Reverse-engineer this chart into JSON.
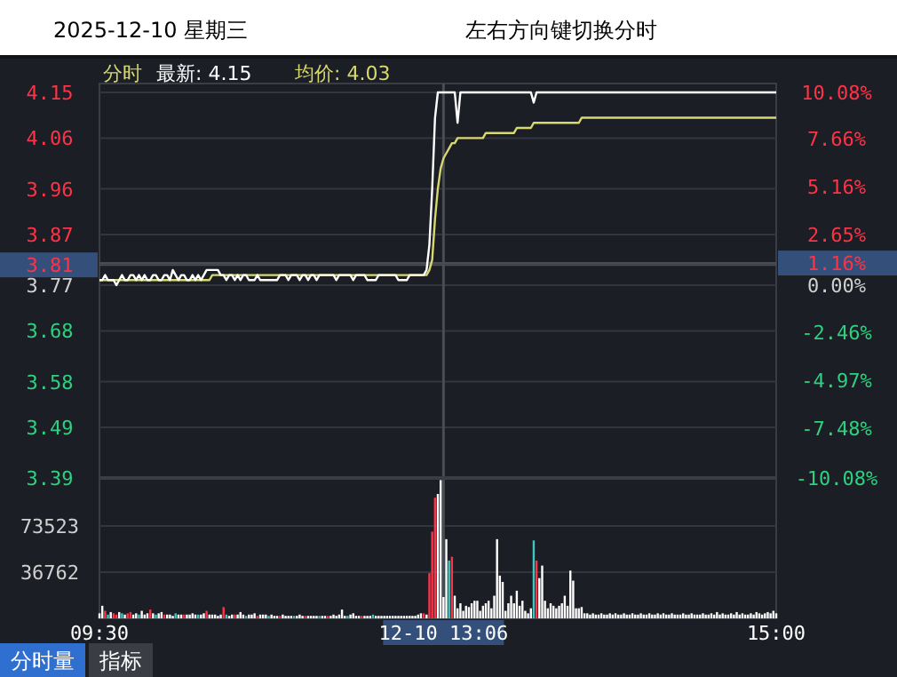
{
  "chart_data": [
    {
      "type": "line",
      "title": "2025-12-10 星期三",
      "subtitle": "左右方向键切换分时",
      "legend_title": "分时",
      "legend": "top left",
      "grid": "y",
      "tick_labels": "y",
      "categories": [
        "09:30",
        null,
        null,
        null,
        null,
        null,
        null,
        null,
        null,
        null,
        null,
        null,
        null,
        null,
        null,
        null,
        null,
        null,
        null,
        null,
        null,
        null,
        null,
        null,
        null,
        null,
        null,
        null,
        null,
        null,
        null,
        null,
        null,
        null,
        null,
        null,
        null,
        null,
        null,
        null,
        null,
        null,
        null,
        null,
        null,
        null,
        null,
        null,
        null,
        null,
        null,
        null,
        null,
        null,
        null,
        null,
        null,
        null,
        null,
        null,
        null,
        null,
        null,
        null,
        null,
        null,
        null,
        null,
        null,
        null,
        null,
        null,
        null,
        null,
        null,
        null,
        null,
        null,
        null,
        null,
        null,
        null,
        null,
        null,
        null,
        null,
        null,
        null,
        null,
        null,
        null,
        null,
        null,
        null,
        null,
        null,
        null,
        null,
        null,
        null,
        null,
        null,
        null,
        null,
        null,
        null,
        null,
        null,
        null,
        null,
        null,
        null,
        null,
        null,
        null,
        null,
        null,
        null,
        null,
        null,
        null,
        null,
        "12-10 13:06",
        null,
        null,
        null,
        null,
        null,
        null,
        null,
        null,
        null,
        null,
        null,
        null,
        null,
        null,
        null,
        null,
        null,
        null,
        null,
        null,
        null,
        null,
        null,
        null,
        null,
        null,
        null,
        null,
        null,
        null,
        null,
        null,
        null,
        null,
        null,
        null,
        null,
        null,
        null,
        null,
        null,
        null,
        null,
        null,
        null,
        null,
        null,
        null,
        null,
        null,
        null,
        null,
        null,
        null,
        null,
        null,
        null,
        null,
        null,
        null,
        null,
        null,
        null,
        null,
        null,
        null,
        null,
        null,
        null,
        null,
        null,
        null,
        null,
        null,
        null,
        null,
        null,
        null,
        null,
        null,
        null,
        null,
        null,
        null,
        null,
        null,
        null,
        null,
        null,
        null,
        null,
        null,
        null,
        null,
        null,
        null,
        null,
        null,
        null,
        null,
        null,
        null,
        null,
        null,
        null,
        null,
        null,
        null,
        null,
        null,
        null,
        null,
        null,
        null,
        null,
        null,
        null,
        "15:00"
      ],
      "ylim": [
        3.39,
        4.15
      ],
      "y2lim": [
        -10.08,
        10.08
      ],
      "yticks": [
        3.39,
        3.49,
        3.58,
        3.68,
        3.77,
        3.87,
        3.96,
        4.06,
        4.15
      ],
      "y2ticks": [
        {
          "value": -10.08,
          "label": "-10.08%"
        },
        {
          "value": -7.48,
          "label": "-7.48%"
        },
        {
          "value": -4.97,
          "label": "-4.97%"
        },
        {
          "value": -2.46,
          "label": "-2.46%"
        },
        {
          "value": 0,
          "label": "0.00%"
        },
        {
          "value": 2.65,
          "label": "2.65%"
        },
        {
          "value": 5.16,
          "label": "5.16%"
        },
        {
          "value": 7.66,
          "label": "7.66%"
        },
        {
          "value": 10.08,
          "label": "10.08%"
        }
      ],
      "ref_lines": [
        {
          "axis": "y",
          "value": 3.81,
          "label": "3.81"
        },
        {
          "axis": "y2",
          "value": 1.16,
          "label": "1.16%"
        },
        {
          "axis": "x",
          "value": "12-10 13:06"
        }
      ],
      "series": [
        {
          "name": "均价: 4.03",
          "color": "#d8d870",
          "values": [
            3.78,
            3.78,
            3.78,
            3.78,
            3.78,
            3.78,
            3.78,
            3.78,
            3.78,
            3.78,
            3.78,
            3.78,
            3.78,
            3.78,
            3.78,
            3.78,
            3.78,
            3.78,
            3.78,
            3.78,
            3.78,
            3.78,
            3.78,
            3.78,
            3.78,
            3.78,
            3.78,
            3.78,
            3.78,
            3.78,
            3.78,
            3.78,
            3.78,
            3.78,
            3.78,
            3.78,
            3.78,
            3.78,
            3.78,
            3.78,
            3.79,
            3.79,
            3.79,
            3.79,
            3.79,
            3.79,
            3.79,
            3.79,
            3.79,
            3.79,
            3.79,
            3.79,
            3.79,
            3.79,
            3.79,
            3.79,
            3.79,
            3.79,
            3.79,
            3.79,
            3.79,
            3.79,
            3.79,
            3.79,
            3.79,
            3.79,
            3.79,
            3.79,
            3.79,
            3.79,
            3.79,
            3.79,
            3.79,
            3.79,
            3.79,
            3.79,
            3.79,
            3.79,
            3.79,
            3.79,
            3.79,
            3.79,
            3.79,
            3.79,
            3.79,
            3.79,
            3.79,
            3.79,
            3.79,
            3.79,
            3.79,
            3.79,
            3.79,
            3.79,
            3.79,
            3.79,
            3.79,
            3.79,
            3.79,
            3.79,
            3.79,
            3.79,
            3.79,
            3.79,
            3.79,
            3.79,
            3.79,
            3.79,
            3.79,
            3.79,
            3.79,
            3.79,
            3.79,
            3.79,
            3.79,
            3.79,
            3.79,
            3.8,
            3.82,
            3.9,
            3.96,
            4.0,
            4.02,
            4.03,
            4.04,
            4.05,
            4.05,
            4.06,
            4.06,
            4.06,
            4.06,
            4.06,
            4.06,
            4.06,
            4.06,
            4.06,
            4.06,
            4.07,
            4.07,
            4.07,
            4.07,
            4.07,
            4.07,
            4.07,
            4.07,
            4.07,
            4.07,
            4.07,
            4.08,
            4.08,
            4.08,
            4.08,
            4.08,
            4.08,
            4.09,
            4.09,
            4.09,
            4.09,
            4.09,
            4.09,
            4.09,
            4.09,
            4.09,
            4.09,
            4.09,
            4.09,
            4.09,
            4.09,
            4.09,
            4.09,
            4.09,
            4.1,
            4.1,
            4.1,
            4.1,
            4.1,
            4.1,
            4.1,
            4.1,
            4.1,
            4.1,
            4.1,
            4.1,
            4.1,
            4.1,
            4.1,
            4.1,
            4.1,
            4.1,
            4.1,
            4.1,
            4.1,
            4.1,
            4.1,
            4.1,
            4.1,
            4.1,
            4.1,
            4.1,
            4.1,
            4.1,
            4.1,
            4.1,
            4.1,
            4.1,
            4.1,
            4.1,
            4.1,
            4.1,
            4.1,
            4.1,
            4.1,
            4.1,
            4.1,
            4.1,
            4.1,
            4.1,
            4.1,
            4.1,
            4.1,
            4.1,
            4.1,
            4.1,
            4.1,
            4.1,
            4.1,
            4.1,
            4.1,
            4.1,
            4.1,
            4.1,
            4.1,
            4.1,
            4.1,
            4.1,
            4.1,
            4.1,
            4.1,
            4.1,
            4.1,
            4.1
          ]
        },
        {
          "name": "最新: 4.15",
          "color": "#ffffff",
          "values": [
            3.78,
            3.78,
            3.79,
            3.78,
            3.78,
            3.78,
            3.77,
            3.78,
            3.79,
            3.78,
            3.78,
            3.79,
            3.79,
            3.78,
            3.79,
            3.78,
            3.79,
            3.78,
            3.78,
            3.79,
            3.79,
            3.78,
            3.78,
            3.79,
            3.79,
            3.78,
            3.8,
            3.79,
            3.78,
            3.79,
            3.79,
            3.78,
            3.78,
            3.79,
            3.78,
            3.79,
            3.78,
            3.79,
            3.8,
            3.8,
            3.8,
            3.8,
            3.8,
            3.79,
            3.79,
            3.78,
            3.79,
            3.79,
            3.78,
            3.79,
            3.78,
            3.79,
            3.79,
            3.78,
            3.78,
            3.78,
            3.79,
            3.78,
            3.78,
            3.78,
            3.78,
            3.78,
            3.78,
            3.78,
            3.79,
            3.79,
            3.79,
            3.78,
            3.79,
            3.79,
            3.79,
            3.78,
            3.79,
            3.79,
            3.78,
            3.79,
            3.79,
            3.78,
            3.79,
            3.79,
            3.79,
            3.79,
            3.79,
            3.79,
            3.78,
            3.79,
            3.79,
            3.79,
            3.79,
            3.79,
            3.78,
            3.79,
            3.79,
            3.79,
            3.79,
            3.78,
            3.78,
            3.78,
            3.78,
            3.79,
            3.79,
            3.79,
            3.79,
            3.79,
            3.79,
            3.79,
            3.78,
            3.78,
            3.78,
            3.78,
            3.79,
            3.79,
            3.79,
            3.79,
            3.79,
            3.79,
            3.8,
            3.85,
            3.96,
            4.1,
            4.15,
            4.15,
            4.15,
            4.15,
            4.15,
            4.15,
            4.15,
            4.09,
            4.15,
            4.15,
            4.15,
            4.15,
            4.15,
            4.15,
            4.15,
            4.15,
            4.15,
            4.15,
            4.15,
            4.15,
            4.15,
            4.15,
            4.15,
            4.15,
            4.15,
            4.15,
            4.15,
            4.15,
            4.15,
            4.15,
            4.15,
            4.15,
            4.15,
            4.15,
            4.13,
            4.15,
            4.15,
            4.15,
            4.15,
            4.15,
            4.15,
            4.15,
            4.15,
            4.15,
            4.15,
            4.15,
            4.15,
            4.15,
            4.15,
            4.15,
            4.15,
            4.15,
            4.15,
            4.15,
            4.15,
            4.15,
            4.15,
            4.15,
            4.15,
            4.15,
            4.15,
            4.15,
            4.15,
            4.15,
            4.15,
            4.15,
            4.15,
            4.15,
            4.15,
            4.15,
            4.15,
            4.15,
            4.15,
            4.15,
            4.15,
            4.15,
            4.15,
            4.15,
            4.15,
            4.15,
            4.15,
            4.15,
            4.15,
            4.15,
            4.15,
            4.15,
            4.15,
            4.15,
            4.15,
            4.15,
            4.15,
            4.15,
            4.15,
            4.15,
            4.15,
            4.15,
            4.15,
            4.15,
            4.15,
            4.15,
            4.15,
            4.15,
            4.15,
            4.15,
            4.15,
            4.15,
            4.15,
            4.15,
            4.15,
            4.15,
            4.15,
            4.15,
            4.15,
            4.15,
            4.15,
            4.15,
            4.15,
            4.15,
            4.15,
            4.15,
            4.15
          ]
        }
      ]
    },
    {
      "type": "bar",
      "grid": "y",
      "ylim": [
        0,
        110285
      ],
      "yticks": [
        36762,
        73523
      ],
      "categories": [
        "09:30",
        null,
        null,
        null,
        null,
        null,
        null,
        null,
        null,
        null,
        null,
        null,
        null,
        null,
        null,
        null,
        null,
        null,
        null,
        null,
        null,
        null,
        null,
        null,
        null,
        null,
        null,
        null,
        null,
        null,
        null,
        null,
        null,
        null,
        null,
        null,
        null,
        null,
        null,
        null,
        null,
        null,
        null,
        null,
        null,
        null,
        null,
        null,
        null,
        null,
        null,
        null,
        null,
        null,
        null,
        null,
        null,
        null,
        null,
        null,
        null,
        null,
        null,
        null,
        null,
        null,
        null,
        null,
        null,
        null,
        null,
        null,
        null,
        null,
        null,
        null,
        null,
        null,
        null,
        null,
        null,
        null,
        null,
        null,
        null,
        null,
        null,
        null,
        null,
        null,
        null,
        null,
        null,
        null,
        null,
        null,
        null,
        null,
        null,
        null,
        null,
        null,
        null,
        null,
        null,
        null,
        null,
        null,
        null,
        null,
        null,
        null,
        null,
        null,
        null,
        null,
        null,
        null,
        null,
        null,
        null,
        null,
        "12-10 13:06",
        null,
        null,
        null,
        null,
        null,
        null,
        null,
        null,
        null,
        null,
        null,
        null,
        null,
        null,
        null,
        null,
        null,
        null,
        null,
        null,
        null,
        null,
        null,
        null,
        null,
        null,
        null,
        null,
        null,
        null,
        null,
        null,
        null,
        null,
        null,
        null,
        null,
        null,
        null,
        null,
        null,
        null,
        null,
        null,
        null,
        null,
        null,
        null,
        null,
        null,
        null,
        null,
        null,
        null,
        null,
        null,
        null,
        null,
        null,
        null,
        null,
        null,
        null,
        null,
        null,
        null,
        null,
        null,
        null,
        null,
        null,
        null,
        null,
        null,
        null,
        null,
        null,
        null,
        null,
        null,
        null,
        null,
        null,
        null,
        null,
        null,
        null,
        null,
        null,
        null,
        null,
        null,
        null,
        null,
        null,
        null,
        null,
        null,
        null,
        null,
        null,
        null,
        null,
        null,
        null,
        null,
        null,
        null,
        null,
        null,
        null,
        null,
        null,
        null,
        null,
        null,
        null,
        "15:00"
      ],
      "ref_lines": [
        {
          "axis": "x",
          "value": "12-10 13:06"
        }
      ],
      "annotations": [
        "分时量",
        "指标"
      ],
      "values": [
        4000,
        10000,
        6000,
        3000,
        5000,
        4000,
        3000,
        5000,
        4000,
        3000,
        4000,
        5000,
        3000,
        4000,
        3000,
        6000,
        3000,
        4000,
        7000,
        4000,
        3000,
        4000,
        5000,
        3000,
        3000,
        3000,
        2000,
        4000,
        3000,
        3000,
        3000,
        3000,
        3000,
        4000,
        3000,
        3000,
        3000,
        4000,
        6000,
        3000,
        3000,
        3000,
        2000,
        3000,
        9000,
        3000,
        2000,
        3000,
        3000,
        3000,
        5000,
        3000,
        2000,
        3000,
        3000,
        4000,
        2000,
        3000,
        3000,
        3000,
        2000,
        3000,
        2000,
        2000,
        2000,
        3000,
        2000,
        2000,
        2000,
        2000,
        2000,
        3000,
        2000,
        2000,
        2000,
        2000,
        2000,
        2000,
        2000,
        2000,
        2000,
        2000,
        2000,
        3000,
        2000,
        3000,
        7000,
        2000,
        2000,
        3000,
        4000,
        2000,
        2000,
        2000,
        2000,
        2000,
        2000,
        3000,
        2000,
        2000,
        2000,
        2000,
        2000,
        2000,
        2000,
        2000,
        2000,
        2000,
        2000,
        2000,
        2000,
        2000,
        2000,
        3000,
        4000,
        4000,
        3000,
        36000,
        69000,
        96000,
        99000,
        110000,
        17000,
        63000,
        46000,
        49000,
        18000,
        8000,
        12000,
        6000,
        10000,
        9000,
        12000,
        14000,
        14000,
        6000,
        10000,
        12000,
        14000,
        8000,
        18000,
        63000,
        34000,
        29000,
        6000,
        12000,
        18000,
        12000,
        22000,
        10000,
        14000,
        6000,
        4000,
        8000,
        62000,
        46000,
        32000,
        42000,
        14000,
        8000,
        12000,
        10000,
        8000,
        10000,
        12000,
        18000,
        10000,
        38000,
        30000,
        8000,
        8000,
        9000,
        4000,
        4000,
        3000,
        4000,
        3000,
        3000,
        4000,
        3000,
        3000,
        4000,
        3000,
        4000,
        3000,
        3000,
        4000,
        3000,
        3000,
        4000,
        3000,
        3000,
        4000,
        3000,
        3000,
        4000,
        3000,
        3000,
        4000,
        3000,
        4000,
        3000,
        3000,
        4000,
        3000,
        3000,
        3000,
        4000,
        3000,
        3000,
        4000,
        3000,
        3000,
        3000,
        4000,
        3000,
        3000,
        4000,
        3000,
        5000,
        3000,
        4000,
        3000,
        3000,
        4000,
        3000,
        5000,
        3000,
        4000,
        3000,
        3000,
        4000,
        3000,
        5000,
        4000,
        3000,
        4000,
        5000,
        4000,
        6000,
        4000
      ],
      "colors": [
        "#ffffff",
        "#ffffff",
        "#ff3348",
        "#3cc8c0",
        "#ffffff",
        "#ff3348",
        "#ff3348",
        "#ffffff",
        "#3cc8c0",
        "#ffffff",
        "#ff3348",
        "#ff3348",
        "#ffffff",
        "#ffffff",
        "#3cc8c0",
        "#ffffff",
        "#ffffff",
        "#ffffff",
        "#ff3348",
        "#ffffff",
        "#3cc8c0",
        "#ffffff",
        "#ffffff",
        "#ff3348",
        "#ffffff",
        "#ffffff",
        "#ffffff",
        "#3cc8c0",
        "#ffffff",
        "#ffffff",
        "#ff3348",
        "#ffffff",
        "#ffffff",
        "#ffffff",
        "#ffffff",
        "#3cc8c0",
        "#ffffff",
        "#ffffff",
        "#ff3348",
        "#ffffff",
        "#ffffff",
        "#ffffff",
        "#ffffff",
        "#ffffff",
        "#ff3348",
        "#3cc8c0",
        "#ffffff",
        "#ffffff",
        "#ff3348",
        "#ffffff",
        "#ffffff",
        "#ffffff",
        "#3cc8c0",
        "#ffffff",
        "#ffffff",
        "#ffffff",
        "#ff3348",
        "#ffffff",
        "#ffffff",
        "#ffffff",
        "#3cc8c0",
        "#ffffff",
        "#ffffff",
        "#ffffff",
        "#ff3348",
        "#ffffff",
        "#ffffff",
        "#ffffff",
        "#ffffff",
        "#3cc8c0",
        "#ffffff",
        "#ffffff",
        "#ffffff",
        "#ff3348",
        "#ffffff",
        "#ffffff",
        "#ffffff",
        "#ffffff",
        "#3cc8c0",
        "#ffffff",
        "#ffffff",
        "#ff3348",
        "#ffffff",
        "#ffffff",
        "#ffffff",
        "#ffffff",
        "#ffffff",
        "#ffffff",
        "#3cc8c0",
        "#ffffff",
        "#ffffff",
        "#ffffff",
        "#ffffff",
        "#ff3348",
        "#ffffff",
        "#ffffff",
        "#ffffff",
        "#3cc8c0",
        "#ffffff",
        "#ffffff",
        "#ffffff",
        "#ffffff",
        "#ffffff",
        "#ffffff",
        "#ffffff",
        "#ffffff",
        "#ffffff",
        "#ffffff",
        "#ffffff",
        "#ffffff",
        "#ffffff",
        "#ffffff",
        "#ffffff",
        "#ffffff",
        "#ffffff",
        "#ff3348",
        "#ffffff",
        "#ff3348",
        "#ff3348",
        "#ff3348",
        "#ffffff",
        "#ffffff",
        "#ffffff",
        "#ffffff",
        "#3cc8c0",
        "#ff3348",
        "#ffffff",
        "#ffffff",
        "#ffffff",
        "#ffffff",
        "#ffffff",
        "#ffffff",
        "#ffffff",
        "#ffffff",
        "#ffffff",
        "#ffffff",
        "#ffffff",
        "#ffffff",
        "#ffffff",
        "#ffffff",
        "#ffffff",
        "#ffffff",
        "#ffffff",
        "#ffffff",
        "#ffffff",
        "#ffffff",
        "#ffffff",
        "#ffffff",
        "#ffffff",
        "#ffffff",
        "#ffffff",
        "#ffffff",
        "#ffffff",
        "#ffffff",
        "#3cc8c0",
        "#ff3348",
        "#ffffff",
        "#ffffff",
        "#ffffff",
        "#ffffff",
        "#ffffff",
        "#ffffff",
        "#ffffff",
        "#ffffff",
        "#ffffff",
        "#ffffff",
        "#ffffff",
        "#ffffff",
        "#ffffff",
        "#ffffff",
        "#ffffff",
        "#ffffff",
        "#ffffff",
        "#ffffff",
        "#ffffff",
        "#ffffff",
        "#ffffff",
        "#ffffff",
        "#ffffff",
        "#ffffff",
        "#ffffff",
        "#ffffff",
        "#ffffff",
        "#ffffff",
        "#ffffff",
        "#ffffff",
        "#ffffff",
        "#ffffff",
        "#ffffff",
        "#ffffff",
        "#ffffff",
        "#ffffff",
        "#ffffff",
        "#ffffff",
        "#ffffff",
        "#ffffff",
        "#ffffff",
        "#ffffff",
        "#ffffff",
        "#ffffff",
        "#ffffff",
        "#ffffff",
        "#ffffff",
        "#ffffff",
        "#ffffff",
        "#ffffff",
        "#ffffff",
        "#ffffff",
        "#ffffff",
        "#ffffff",
        "#ffffff",
        "#ffffff",
        "#ffffff",
        "#ffffff",
        "#ffffff",
        "#ffffff",
        "#ffffff",
        "#ffffff",
        "#ffffff",
        "#ffffff",
        "#ffffff",
        "#ffffff",
        "#ffffff",
        "#ffffff",
        "#ffffff",
        "#ffffff",
        "#ffffff",
        "#ffffff",
        "#ffffff",
        "#ffffff",
        "#ffffff",
        "#ffffff",
        "#ffffff",
        "#ffffff",
        "#ffffff",
        "#ffffff",
        "#ffffff",
        "#ffffff",
        "#ffffff",
        "#ffffff",
        "#ffffff"
      ]
    }
  ]
}
